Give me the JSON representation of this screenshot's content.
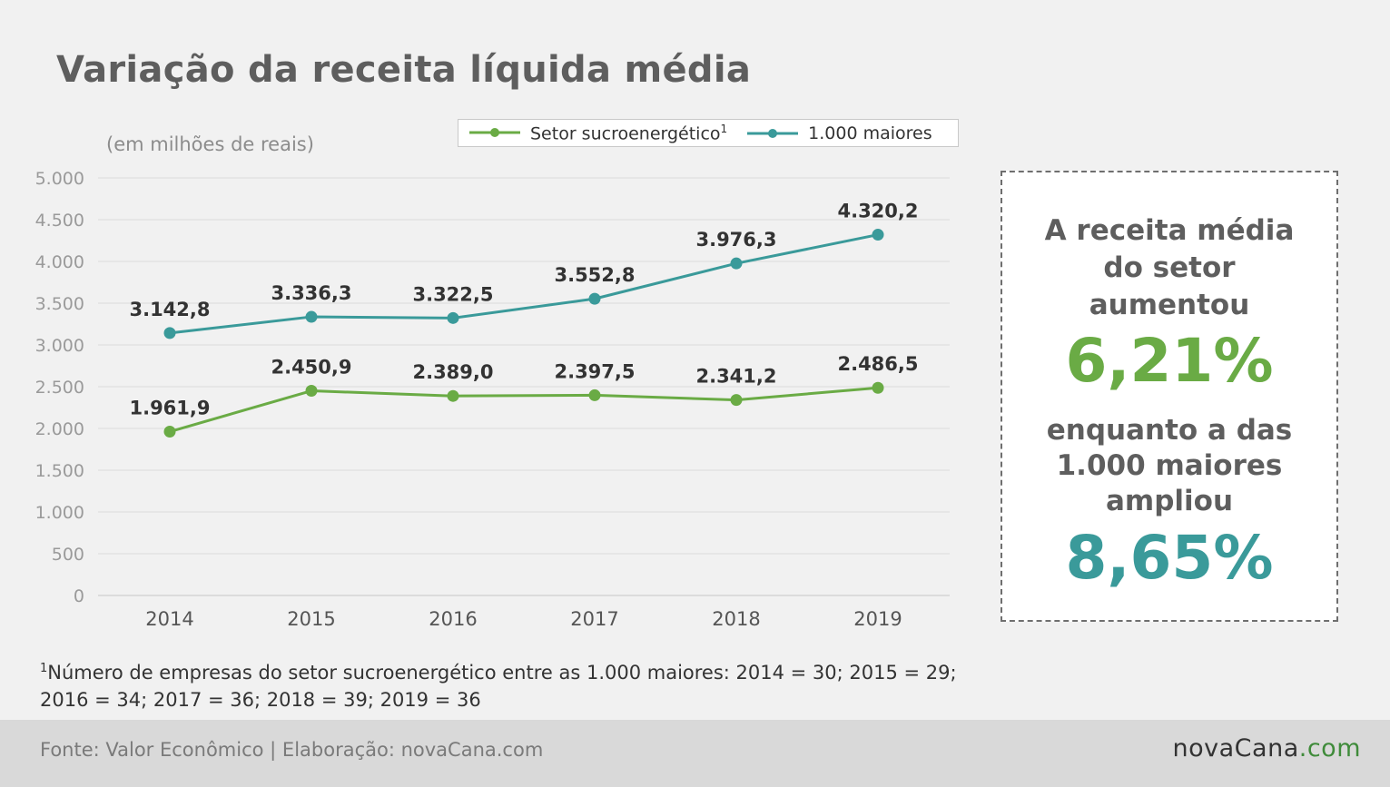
{
  "title": "Variação da receita líquida média",
  "unit_label": "(em milhões de reais)",
  "colors": {
    "setor": "#6aab45",
    "maiores": "#3a9a9a",
    "grid": "#dcdcdc",
    "tick": "#9a9a9a",
    "value_label": "#333333",
    "axis": "#555555"
  },
  "legend": [
    {
      "name": "Setor sucroenergético",
      "sup": "1",
      "color": "#6aab45"
    },
    {
      "name": "1.000 maiores",
      "sup": "",
      "color": "#3a9a9a"
    }
  ],
  "chart_data": {
    "type": "line",
    "x": [
      "2014",
      "2015",
      "2016",
      "2017",
      "2018",
      "2019"
    ],
    "ylim": [
      0,
      5000
    ],
    "yticks": [
      0,
      500,
      1000,
      1500,
      2000,
      2500,
      3000,
      3500,
      4000,
      4500,
      5000
    ],
    "ytick_labels": [
      "0",
      "500",
      "1.000",
      "1.500",
      "2.000",
      "2.500",
      "3.000",
      "3.500",
      "4.000",
      "4.500",
      "5.000"
    ],
    "grid": true,
    "legend_position": "top",
    "series": [
      {
        "name": "1.000 maiores",
        "color": "#3a9a9a",
        "values": [
          3142.8,
          3336.3,
          3322.5,
          3552.8,
          3976.3,
          4320.2
        ],
        "labels": [
          "3.142,8",
          "3.336,3",
          "3.322,5",
          "3.552,8",
          "3.976,3",
          "4.320,2"
        ]
      },
      {
        "name": "Setor sucroenergético",
        "color": "#6aab45",
        "values": [
          1961.9,
          2450.9,
          2389.0,
          2397.5,
          2341.2,
          2486.5
        ],
        "labels": [
          "1.961,9",
          "2.450,9",
          "2.389,0",
          "2.397,5",
          "2.341,2",
          "2.486,5"
        ]
      }
    ]
  },
  "callout": {
    "line1": "A receita média",
    "line2": "do setor",
    "line3": "aumentou",
    "pct1": "6,21%",
    "line4": "enquanto a das",
    "line5": "1.000 maiores",
    "line6": "ampliou",
    "pct2": "8,65%"
  },
  "footnote": {
    "sup": "1",
    "line1": "Número de empresas do setor sucroenergético entre as 1.000 maiores: 2014 = 30; 2015 = 29;",
    "line2": "2016 = 34; 2017 = 36; 2018 = 39; 2019 = 36"
  },
  "footer": {
    "source": "Fonte: Valor Econômico | Elaboração: novaCana.com",
    "brand_main": "novaCana",
    "brand_suffix": ".com"
  }
}
